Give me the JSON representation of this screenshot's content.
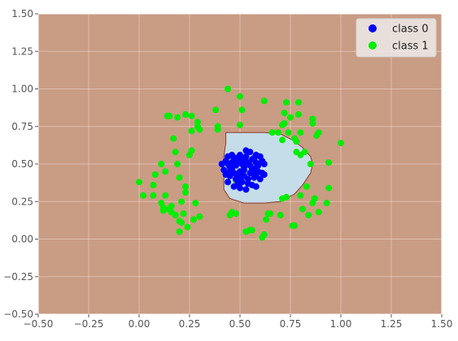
{
  "chart_data": {
    "type": "scatter",
    "title": "",
    "xlabel": "",
    "ylabel": "",
    "xlim": [
      -0.5,
      1.5
    ],
    "ylim": [
      -0.5,
      1.5
    ],
    "grid": true,
    "legend_position": "top-right",
    "xticks": [
      "−0.50",
      "−0.25",
      "0.00",
      "0.25",
      "0.50",
      "0.75",
      "1.00",
      "1.25",
      "1.50"
    ],
    "xtick_values": [
      -0.5,
      -0.25,
      0,
      0.25,
      0.5,
      0.75,
      1.0,
      1.25,
      1.5
    ],
    "yticks": [
      "−0.50",
      "−0.25",
      "0.00",
      "0.25",
      "0.50",
      "0.75",
      "1.00",
      "1.25",
      "1.50"
    ],
    "ytick_values": [
      -0.5,
      -0.25,
      0,
      0.25,
      0.5,
      0.75,
      1.0,
      1.25,
      1.5
    ],
    "background_region": {
      "label": "class 1 decision region",
      "color": "#c99c84"
    },
    "decision_region": {
      "color": "#c5dde8",
      "border_color": "#8b3a2a",
      "polygon": [
        [
          0.43,
          0.71
        ],
        [
          0.62,
          0.71
        ],
        [
          0.7,
          0.7
        ],
        [
          0.76,
          0.66
        ],
        [
          0.81,
          0.61
        ],
        [
          0.85,
          0.55
        ],
        [
          0.86,
          0.5
        ],
        [
          0.85,
          0.44
        ],
        [
          0.81,
          0.36
        ],
        [
          0.77,
          0.3
        ],
        [
          0.7,
          0.25
        ],
        [
          0.62,
          0.24
        ],
        [
          0.52,
          0.24
        ],
        [
          0.45,
          0.27
        ],
        [
          0.42,
          0.33
        ],
        [
          0.42,
          0.42
        ],
        [
          0.42,
          0.55
        ],
        [
          0.43,
          0.64
        ]
      ]
    },
    "series": [
      {
        "name": "class 0",
        "color": "#0000ff",
        "points": [
          [
            0.41,
            0.5
          ],
          [
            0.42,
            0.46
          ],
          [
            0.43,
            0.52
          ],
          [
            0.44,
            0.55
          ],
          [
            0.45,
            0.48
          ],
          [
            0.46,
            0.56
          ],
          [
            0.47,
            0.44
          ],
          [
            0.48,
            0.4
          ],
          [
            0.49,
            0.52
          ],
          [
            0.5,
            0.45
          ],
          [
            0.51,
            0.53
          ],
          [
            0.52,
            0.48
          ],
          [
            0.52,
            0.42
          ],
          [
            0.53,
            0.55
          ],
          [
            0.54,
            0.5
          ],
          [
            0.55,
            0.44
          ],
          [
            0.56,
            0.53
          ],
          [
            0.57,
            0.47
          ],
          [
            0.58,
            0.51
          ],
          [
            0.59,
            0.45
          ],
          [
            0.6,
            0.4
          ],
          [
            0.61,
            0.44
          ],
          [
            0.62,
            0.5
          ],
          [
            0.47,
            0.35
          ],
          [
            0.5,
            0.34
          ],
          [
            0.53,
            0.33
          ],
          [
            0.56,
            0.36
          ],
          [
            0.58,
            0.35
          ],
          [
            0.44,
            0.38
          ],
          [
            0.46,
            0.46
          ],
          [
            0.48,
            0.49
          ],
          [
            0.5,
            0.56
          ],
          [
            0.53,
            0.59
          ],
          [
            0.55,
            0.58
          ],
          [
            0.58,
            0.56
          ],
          [
            0.6,
            0.55
          ],
          [
            0.43,
            0.43
          ],
          [
            0.45,
            0.42
          ],
          [
            0.51,
            0.38
          ],
          [
            0.54,
            0.4
          ],
          [
            0.57,
            0.41
          ],
          [
            0.49,
            0.43
          ],
          [
            0.52,
            0.46
          ],
          [
            0.55,
            0.49
          ],
          [
            0.57,
            0.54
          ],
          [
            0.46,
            0.51
          ],
          [
            0.48,
            0.54
          ],
          [
            0.51,
            0.5
          ],
          [
            0.53,
            0.52
          ],
          [
            0.56,
            0.46
          ],
          [
            0.59,
            0.49
          ],
          [
            0.61,
            0.52
          ],
          [
            0.44,
            0.5
          ],
          [
            0.47,
            0.53
          ],
          [
            0.5,
            0.41
          ],
          [
            0.54,
            0.37
          ],
          [
            0.62,
            0.43
          ],
          [
            0.58,
            0.43
          ],
          [
            0.49,
            0.37
          ],
          [
            0.45,
            0.45
          ]
        ]
      },
      {
        "name": "class 1",
        "color": "#00ee00",
        "points": [
          [
            0.0,
            0.38
          ],
          [
            0.02,
            0.29
          ],
          [
            0.07,
            0.36
          ],
          [
            0.07,
            0.29
          ],
          [
            0.08,
            0.43
          ],
          [
            0.11,
            0.5
          ],
          [
            0.11,
            0.24
          ],
          [
            0.12,
            0.19
          ],
          [
            0.12,
            0.21
          ],
          [
            0.13,
            0.29
          ],
          [
            0.13,
            0.45
          ],
          [
            0.14,
            0.82
          ],
          [
            0.15,
            0.82
          ],
          [
            0.15,
            0.2
          ],
          [
            0.16,
            0.18
          ],
          [
            0.16,
            0.22
          ],
          [
            0.17,
            0.67
          ],
          [
            0.18,
            0.16
          ],
          [
            0.18,
            0.58
          ],
          [
            0.19,
            0.81
          ],
          [
            0.19,
            0.5
          ],
          [
            0.2,
            0.41
          ],
          [
            0.2,
            0.05
          ],
          [
            0.2,
            0.12
          ],
          [
            0.21,
            0.11
          ],
          [
            0.21,
            0.25
          ],
          [
            0.22,
            0.17
          ],
          [
            0.23,
            0.35
          ],
          [
            0.23,
            0.31
          ],
          [
            0.23,
            0.83
          ],
          [
            0.24,
            0.08
          ],
          [
            0.25,
            0.56
          ],
          [
            0.26,
            0.82
          ],
          [
            0.26,
            0.59
          ],
          [
            0.26,
            0.72
          ],
          [
            0.27,
            0.13
          ],
          [
            0.28,
            0.24
          ],
          [
            0.29,
            0.75
          ],
          [
            0.29,
            0.78
          ],
          [
            0.3,
            0.73
          ],
          [
            0.3,
            0.15
          ],
          [
            0.38,
            0.86
          ],
          [
            0.39,
            0.73
          ],
          [
            0.39,
            0.75
          ],
          [
            0.44,
            1.0
          ],
          [
            0.45,
            0.16
          ],
          [
            0.46,
            0.18
          ],
          [
            0.48,
            0.39
          ],
          [
            0.48,
            0.17
          ],
          [
            0.5,
            0.95
          ],
          [
            0.5,
            0.76
          ],
          [
            0.51,
            0.86
          ],
          [
            0.53,
            0.05
          ],
          [
            0.55,
            0.06
          ],
          [
            0.56,
            0.06
          ],
          [
            0.61,
            0.01
          ],
          [
            0.62,
            0.03
          ],
          [
            0.62,
            0.92
          ],
          [
            0.63,
            0.13
          ],
          [
            0.64,
            0.17
          ],
          [
            0.65,
            0.17
          ],
          [
            0.66,
            0.71
          ],
          [
            0.69,
            0.71
          ],
          [
            0.7,
            0.16
          ],
          [
            0.71,
            0.27
          ],
          [
            0.71,
            0.76
          ],
          [
            0.71,
            0.66
          ],
          [
            0.72,
            0.84
          ],
          [
            0.72,
            0.77
          ],
          [
            0.73,
            0.28
          ],
          [
            0.73,
            0.91
          ],
          [
            0.74,
            0.71
          ],
          [
            0.75,
            0.81
          ],
          [
            0.76,
            0.09
          ],
          [
            0.77,
            0.67
          ],
          [
            0.77,
            0.09
          ],
          [
            0.78,
            0.58
          ],
          [
            0.78,
            0.65
          ],
          [
            0.79,
            0.91
          ],
          [
            0.79,
            0.83
          ],
          [
            0.8,
            0.71
          ],
          [
            0.8,
            0.56
          ],
          [
            0.8,
            0.29
          ],
          [
            0.81,
            0.2
          ],
          [
            0.82,
            0.58
          ],
          [
            0.83,
            0.35
          ],
          [
            0.84,
            0.16
          ],
          [
            0.85,
            0.5
          ],
          [
            0.86,
            0.8
          ],
          [
            0.86,
            0.77
          ],
          [
            0.86,
            0.24
          ],
          [
            0.87,
            0.27
          ],
          [
            0.88,
            0.69
          ],
          [
            0.89,
            0.71
          ],
          [
            0.89,
            0.18
          ],
          [
            0.93,
            0.24
          ],
          [
            0.94,
            0.51
          ],
          [
            0.94,
            0.34
          ],
          [
            1.0,
            0.64
          ]
        ]
      }
    ]
  }
}
